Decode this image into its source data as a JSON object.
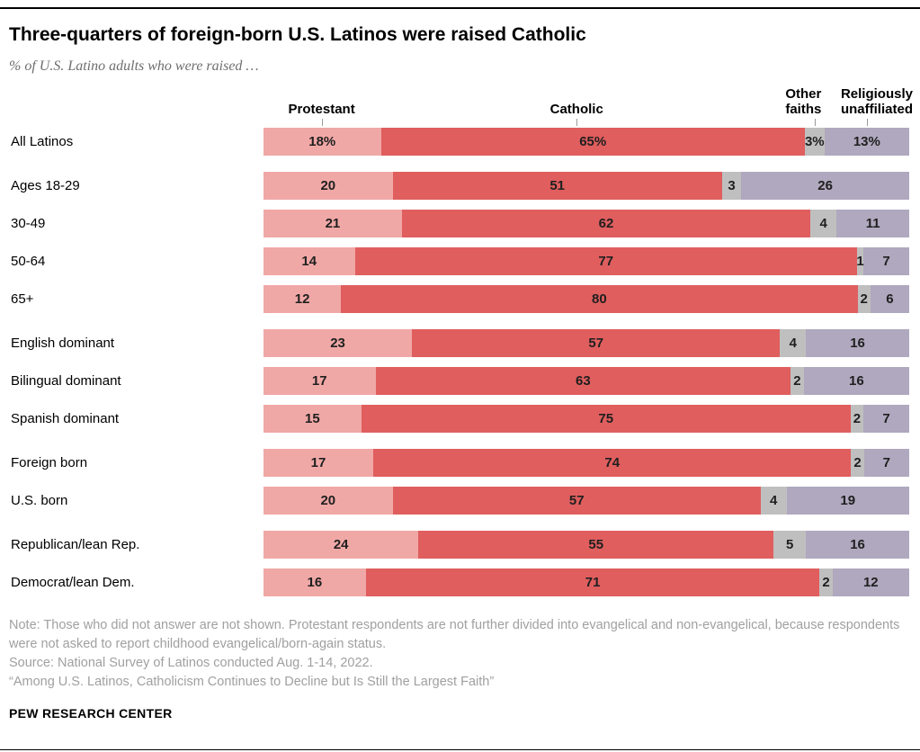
{
  "title": "Three-quarters of foreign-born U.S. Latinos were raised Catholic",
  "subtitle": "% of U.S. Latino adults who were raised …",
  "legend": {
    "col1": "Protestant",
    "col2": "Catholic",
    "col3_line1": "Other",
    "col3_line2": "faiths",
    "col4_line1": "Religiously",
    "col4_line2": "unaffiliated"
  },
  "chart_data": {
    "type": "bar",
    "stacked": true,
    "orientation": "horizontal",
    "unit": "%",
    "series_names": [
      "Protestant",
      "Catholic",
      "Other faiths",
      "Religiously unaffiliated"
    ],
    "colors": [
      "#f0a8a6",
      "#e05e5e",
      "#c0bfbf",
      "#afa8be"
    ],
    "groups": [
      {
        "rows": [
          {
            "label": "All Latinos",
            "values": [
              18,
              65,
              3,
              13
            ],
            "display": [
              "18%",
              "65%",
              "3%",
              "13%"
            ]
          }
        ]
      },
      {
        "rows": [
          {
            "label": "Ages 18-29",
            "values": [
              20,
              51,
              3,
              26
            ],
            "display": [
              "20",
              "51",
              "3",
              "26"
            ]
          },
          {
            "label": "30-49",
            "values": [
              21,
              62,
              4,
              11
            ],
            "display": [
              "21",
              "62",
              "4",
              "11"
            ]
          },
          {
            "label": "50-64",
            "values": [
              14,
              77,
              1,
              7
            ],
            "display": [
              "14",
              "77",
              "1",
              "7"
            ]
          },
          {
            "label": "65+",
            "values": [
              12,
              80,
              2,
              6
            ],
            "display": [
              "12",
              "80",
              "2",
              "6"
            ]
          }
        ]
      },
      {
        "rows": [
          {
            "label": "English dominant",
            "values": [
              23,
              57,
              4,
              16
            ],
            "display": [
              "23",
              "57",
              "4",
              "16"
            ]
          },
          {
            "label": "Bilingual dominant",
            "values": [
              17,
              63,
              2,
              16
            ],
            "display": [
              "17",
              "63",
              "2",
              "16"
            ]
          },
          {
            "label": "Spanish dominant",
            "values": [
              15,
              75,
              2,
              7
            ],
            "display": [
              "15",
              "75",
              "2",
              "7"
            ]
          }
        ]
      },
      {
        "rows": [
          {
            "label": "Foreign born",
            "values": [
              17,
              74,
              2,
              7
            ],
            "display": [
              "17",
              "74",
              "2",
              "7"
            ]
          },
          {
            "label": "U.S. born",
            "values": [
              20,
              57,
              4,
              19
            ],
            "display": [
              "20",
              "57",
              "4",
              "19"
            ]
          }
        ]
      },
      {
        "rows": [
          {
            "label": "Republican/lean Rep.",
            "values": [
              24,
              55,
              5,
              16
            ],
            "display": [
              "24",
              "55",
              "5",
              "16"
            ]
          },
          {
            "label": "Democrat/lean Dem.",
            "values": [
              16,
              71,
              2,
              12
            ],
            "display": [
              "16",
              "71",
              "2",
              "12"
            ]
          }
        ]
      }
    ]
  },
  "notes": {
    "note": "Note: Those who did not answer are not shown. Protestant respondents are not further divided into evangelical and non-evangelical, because respondents were not asked to report childhood evangelical/born-again status.",
    "source": "Source: National Survey of Latinos conducted Aug. 1-14, 2022.",
    "quote": "“Among U.S. Latinos, Catholicism Continues to Decline but Is Still the Largest Faith”"
  },
  "footer": "PEW RESEARCH CENTER"
}
